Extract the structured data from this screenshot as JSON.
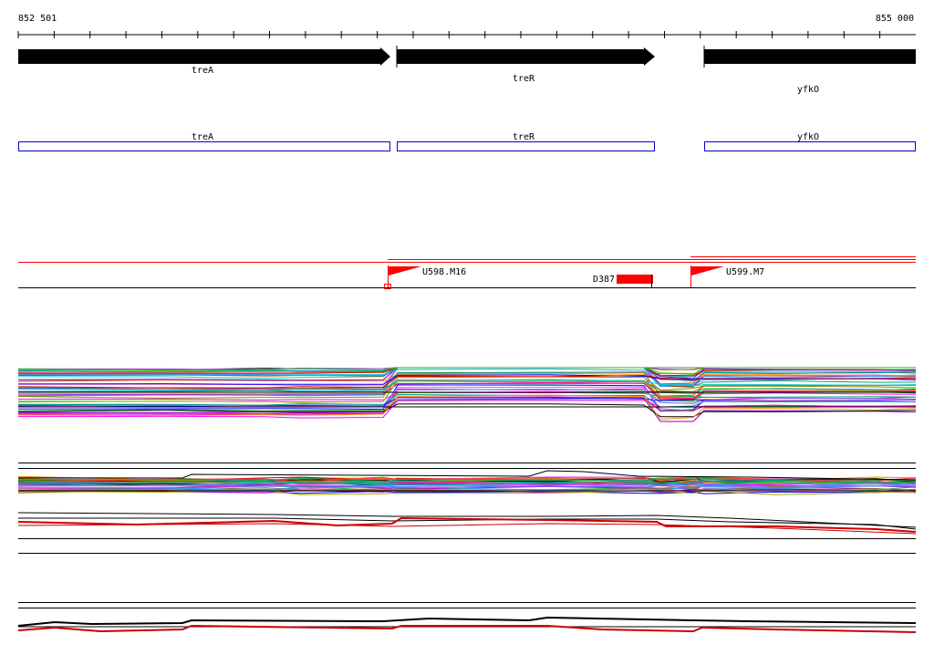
{
  "coordinates": {
    "start": "852 501",
    "end": "855 000"
  },
  "genes": [
    {
      "name": "treA"
    },
    {
      "name": "treR"
    },
    {
      "name": "yfkO"
    }
  ],
  "markers": [
    {
      "name": "U598.M16",
      "color": "#ff0000"
    },
    {
      "name": "U599.M7",
      "color": "#ff0000"
    }
  ],
  "deletion": {
    "name": "D387",
    "color": "#ff0000"
  },
  "colors": {
    "gene_arrow": "#000000",
    "gene_box": "#0000cc",
    "feature": "#ff0000",
    "axis": "#000000"
  }
}
